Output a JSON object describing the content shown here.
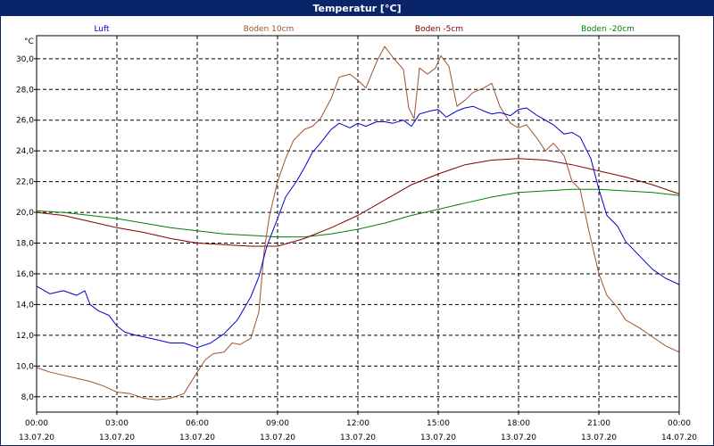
{
  "window": {
    "title": "Temperatur [°C]"
  },
  "chart_data": {
    "type": "line",
    "title": "Temperatur [°C]",
    "ylabel": "°C",
    "ylim": [
      7,
      31.5
    ],
    "xlim": [
      0,
      24
    ],
    "grid": true,
    "yticks": [
      8,
      10,
      12,
      14,
      16,
      18,
      20,
      22,
      24,
      26,
      28,
      30
    ],
    "ytick_labels": [
      "8,0",
      "10,0",
      "12,0",
      "14,0",
      "16,0",
      "18,0",
      "20,0",
      "22,0",
      "24,0",
      "26,0",
      "28,0",
      "30,0"
    ],
    "xticks": [
      0,
      3,
      6,
      9,
      12,
      15,
      18,
      21,
      24
    ],
    "xtick_times": [
      "00:00",
      "03:00",
      "06:00",
      "09:00",
      "12:00",
      "15:00",
      "18:00",
      "21:00",
      "00:00"
    ],
    "xtick_dates": [
      "13.07.20",
      "13.07.20",
      "13.07.20",
      "13.07.20",
      "13.07.20",
      "13.07.20",
      "13.07.20",
      "13.07.20",
      "14.07.20"
    ],
    "series": [
      {
        "name": "Luft",
        "color": "#0000cc",
        "x": [
          0,
          0.5,
          1,
          1.5,
          1.8,
          2,
          2.3,
          2.7,
          3,
          3.3,
          3.7,
          4,
          4.5,
          5,
          5.5,
          6,
          6.5,
          7,
          7.5,
          8,
          8.3,
          8.6,
          9,
          9.3,
          9.7,
          10,
          10.3,
          10.6,
          11,
          11.3,
          11.7,
          12,
          12.3,
          12.7,
          13,
          13.3,
          13.7,
          14,
          14.3,
          14.7,
          15,
          15.3,
          15.7,
          16,
          16.3,
          16.7,
          17,
          17.3,
          17.7,
          18,
          18.3,
          18.7,
          19,
          19.3,
          19.7,
          20,
          20.3,
          20.7,
          21,
          21.3,
          21.7,
          22,
          22.5,
          23,
          23.5,
          24
        ],
        "y": [
          15.2,
          14.7,
          14.9,
          14.6,
          14.9,
          14.0,
          13.6,
          13.3,
          12.6,
          12.2,
          12.0,
          11.9,
          11.7,
          11.5,
          11.5,
          11.2,
          11.5,
          12.1,
          13.0,
          14.5,
          15.8,
          17.8,
          19.6,
          21.0,
          22.0,
          22.9,
          23.9,
          24.5,
          25.4,
          25.8,
          25.5,
          25.8,
          25.6,
          25.9,
          25.9,
          25.8,
          26.0,
          25.6,
          26.4,
          26.6,
          26.7,
          26.2,
          26.6,
          26.8,
          26.9,
          26.6,
          26.4,
          26.5,
          26.3,
          26.7,
          26.8,
          26.3,
          26.0,
          25.7,
          25.1,
          25.2,
          24.9,
          23.5,
          21.5,
          19.8,
          19.1,
          18.1,
          17.2,
          16.3,
          15.7,
          15.3
        ]
      },
      {
        "name": "Boden 10cm",
        "color": "#a0522d",
        "x": [
          0,
          0.5,
          1,
          1.5,
          2,
          2.5,
          3,
          3.5,
          4,
          4.5,
          5,
          5.5,
          6,
          6.3,
          6.6,
          7,
          7.3,
          7.6,
          8,
          8.3,
          8.5,
          8.7,
          9,
          9.3,
          9.6,
          10,
          10.3,
          10.6,
          11,
          11.3,
          11.7,
          12,
          12.3,
          12.7,
          13,
          13.3,
          13.7,
          13.9,
          14.1,
          14.3,
          14.6,
          14.9,
          15.1,
          15.4,
          15.7,
          16,
          16.3,
          16.7,
          17,
          17.3,
          17.7,
          18,
          18.3,
          18.7,
          19,
          19.3,
          19.7,
          20,
          20.3,
          20.6,
          21,
          21.3,
          21.7,
          22,
          22.5,
          23,
          23.5,
          24
        ],
        "y": [
          9.9,
          9.6,
          9.4,
          9.2,
          9.0,
          8.7,
          8.3,
          8.2,
          7.9,
          7.8,
          7.9,
          8.2,
          9.6,
          10.4,
          10.8,
          10.9,
          11.5,
          11.4,
          11.8,
          13.5,
          17.5,
          19.8,
          22.0,
          23.5,
          24.7,
          25.4,
          25.6,
          26.1,
          27.4,
          28.8,
          29.0,
          28.6,
          28.1,
          29.8,
          30.8,
          30.1,
          29.3,
          26.8,
          26.1,
          29.4,
          29.0,
          29.4,
          30.2,
          29.5,
          26.9,
          27.3,
          27.8,
          28.1,
          28.4,
          26.9,
          25.8,
          25.5,
          25.7,
          24.8,
          24.0,
          24.5,
          23.7,
          22.0,
          21.5,
          19.0,
          16.0,
          14.6,
          13.8,
          13.0,
          12.5,
          11.9,
          11.3,
          10.9
        ]
      },
      {
        "name": "Boden -5cm",
        "color": "#800000",
        "x": [
          0,
          1,
          2,
          3,
          4,
          5,
          6,
          7,
          8,
          9,
          10,
          11,
          12,
          13,
          14,
          15,
          16,
          17,
          18,
          19,
          20,
          21,
          22,
          23,
          24
        ],
        "y": [
          20.0,
          19.8,
          19.4,
          19.0,
          18.7,
          18.3,
          18.0,
          17.9,
          17.8,
          17.8,
          18.3,
          19.0,
          19.8,
          20.8,
          21.8,
          22.5,
          23.1,
          23.4,
          23.5,
          23.4,
          23.1,
          22.7,
          22.3,
          21.8,
          21.2
        ]
      },
      {
        "name": "Boden -20cm",
        "color": "#008000",
        "x": [
          0,
          1,
          2,
          3,
          4,
          5,
          6,
          7,
          8,
          9,
          10,
          11,
          12,
          13,
          14,
          15,
          16,
          17,
          18,
          19,
          20,
          21,
          22,
          23,
          24
        ],
        "y": [
          20.1,
          20.0,
          19.8,
          19.6,
          19.3,
          19.0,
          18.8,
          18.6,
          18.5,
          18.4,
          18.4,
          18.6,
          18.9,
          19.3,
          19.8,
          20.2,
          20.6,
          21.0,
          21.3,
          21.4,
          21.5,
          21.5,
          21.4,
          21.3,
          21.1
        ]
      }
    ]
  }
}
